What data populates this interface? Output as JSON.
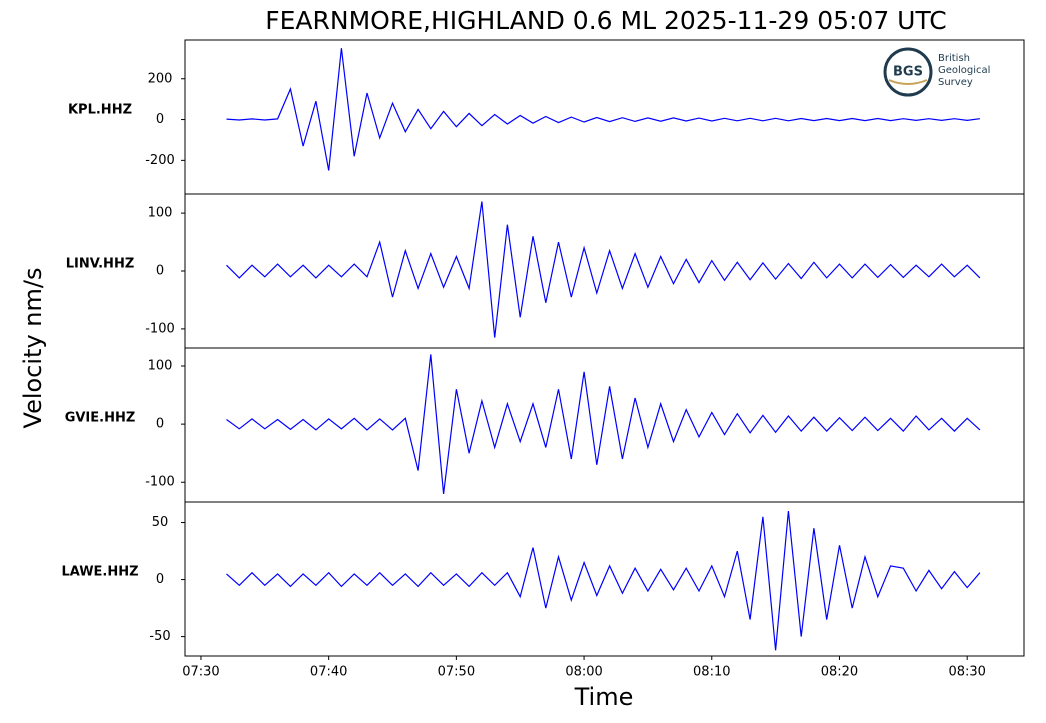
{
  "title": "FEARNMORE,HIGHLAND 0.6 ML   2025-11-29 05:07 UTC",
  "y_label": "Velocity nm/s",
  "x_label": "Time",
  "logo": {
    "acronym": "BGS",
    "lines": [
      "British",
      "Geological",
      "Survey"
    ]
  },
  "chart_data": [
    {
      "type": "line",
      "y_label": "KPL.HHZ",
      "color": "#0000ff",
      "x": [
        452,
        453,
        454,
        455,
        456,
        457,
        458,
        459,
        460,
        461,
        462,
        463,
        464,
        465,
        466,
        467,
        468,
        469,
        470,
        471,
        472,
        473,
        474,
        475,
        476,
        477,
        478,
        479,
        480,
        481,
        482,
        483,
        484,
        485,
        486,
        487,
        488,
        489,
        490,
        491,
        492,
        493,
        494,
        495,
        496,
        497,
        498,
        499,
        500,
        501,
        502,
        503,
        504,
        505,
        506,
        507,
        508,
        509,
        510,
        511
      ],
      "values": [
        2,
        -2,
        3,
        -2,
        3,
        150,
        -130,
        90,
        -250,
        350,
        -180,
        130,
        -90,
        80,
        -60,
        50,
        -45,
        40,
        -35,
        30,
        -30,
        25,
        -22,
        20,
        -18,
        15,
        -15,
        12,
        -12,
        10,
        -10,
        9,
        -9,
        8,
        -8,
        8,
        -7,
        7,
        -7,
        6,
        -6,
        6,
        -6,
        6,
        -6,
        5,
        -5,
        5,
        -5,
        5,
        -5,
        5,
        -5,
        4,
        -4,
        4,
        -4,
        4,
        -4,
        4
      ],
      "xlim": [
        448.75,
        514.45
      ],
      "ylim": [
        -365,
        390
      ],
      "yticks": [
        -200,
        0,
        200
      ]
    },
    {
      "type": "line",
      "y_label": "LINV.HHZ",
      "color": "#0000ff",
      "x": [
        452,
        453,
        454,
        455,
        456,
        457,
        458,
        459,
        460,
        461,
        462,
        463,
        464,
        465,
        466,
        467,
        468,
        469,
        470,
        471,
        472,
        473,
        474,
        475,
        476,
        477,
        478,
        479,
        480,
        481,
        482,
        483,
        484,
        485,
        486,
        487,
        488,
        489,
        490,
        491,
        492,
        493,
        494,
        495,
        496,
        497,
        498,
        499,
        500,
        501,
        502,
        503,
        504,
        505,
        506,
        507,
        508,
        509,
        510,
        511
      ],
      "values": [
        10,
        -12,
        10,
        -10,
        12,
        -10,
        10,
        -12,
        10,
        -10,
        12,
        -10,
        50,
        -45,
        35,
        -30,
        30,
        -28,
        25,
        -30,
        120,
        -115,
        80,
        -80,
        60,
        -55,
        50,
        -45,
        40,
        -38,
        35,
        -30,
        30,
        -28,
        25,
        -22,
        20,
        -20,
        18,
        -16,
        15,
        -15,
        14,
        -14,
        13,
        -13,
        15,
        -12,
        12,
        -12,
        12,
        -11,
        11,
        -11,
        10,
        -10,
        12,
        -10,
        10,
        -12
      ],
      "xlim": [
        448.75,
        514.45
      ],
      "ylim": [
        -133,
        133
      ],
      "yticks": [
        -100,
        0,
        100
      ]
    },
    {
      "type": "line",
      "y_label": "GVIE.HHZ",
      "color": "#0000ff",
      "x": [
        452,
        453,
        454,
        455,
        456,
        457,
        458,
        459,
        460,
        461,
        462,
        463,
        464,
        465,
        466,
        467,
        468,
        469,
        470,
        471,
        472,
        473,
        474,
        475,
        476,
        477,
        478,
        479,
        480,
        481,
        482,
        483,
        484,
        485,
        486,
        487,
        488,
        489,
        490,
        491,
        492,
        493,
        494,
        495,
        496,
        497,
        498,
        499,
        500,
        501,
        502,
        503,
        504,
        505,
        506,
        507,
        508,
        509,
        510,
        511
      ],
      "values": [
        8,
        -8,
        9,
        -8,
        8,
        -9,
        8,
        -10,
        9,
        -8,
        10,
        -10,
        9,
        -10,
        10,
        -80,
        120,
        -120,
        60,
        -50,
        40,
        -40,
        35,
        -30,
        35,
        -40,
        60,
        -60,
        90,
        -70,
        65,
        -60,
        45,
        -40,
        35,
        -30,
        25,
        -22,
        20,
        -18,
        18,
        -15,
        15,
        -14,
        14,
        -12,
        12,
        -12,
        11,
        -11,
        12,
        -11,
        10,
        -12,
        14,
        -10,
        10,
        -12,
        10,
        -10
      ],
      "xlim": [
        448.75,
        514.45
      ],
      "ylim": [
        -134,
        131
      ],
      "yticks": [
        -100,
        0,
        100
      ]
    },
    {
      "type": "line",
      "y_label": "LAWE.HHZ",
      "color": "#0000ff",
      "x": [
        452,
        453,
        454,
        455,
        456,
        457,
        458,
        459,
        460,
        461,
        462,
        463,
        464,
        465,
        466,
        467,
        468,
        469,
        470,
        471,
        472,
        473,
        474,
        475,
        476,
        477,
        478,
        479,
        480,
        481,
        482,
        483,
        484,
        485,
        486,
        487,
        488,
        489,
        490,
        491,
        492,
        493,
        494,
        495,
        496,
        497,
        498,
        499,
        500,
        501,
        502,
        503,
        504,
        505,
        506,
        507,
        508,
        509,
        510,
        511
      ],
      "values": [
        5,
        -5,
        6,
        -5,
        5,
        -6,
        5,
        -5,
        6,
        -6,
        5,
        -5,
        6,
        -5,
        5,
        -6,
        6,
        -5,
        5,
        -6,
        6,
        -5,
        6,
        -15,
        28,
        -25,
        20,
        -18,
        15,
        -14,
        12,
        -12,
        10,
        -10,
        9,
        -9,
        10,
        -10,
        12,
        -15,
        25,
        -35,
        55,
        -62,
        60,
        -50,
        45,
        -35,
        30,
        -25,
        20,
        -15,
        12,
        10,
        -10,
        8,
        -8,
        7,
        -7,
        6
      ],
      "xlim": [
        448.75,
        514.45
      ],
      "ylim": [
        -67,
        68
      ],
      "yticks": [
        -50,
        0,
        50
      ],
      "xticks": [
        {
          "value": 450,
          "label": "07:30"
        },
        {
          "value": 460,
          "label": "07:40"
        },
        {
          "value": 470,
          "label": "07:50"
        },
        {
          "value": 480,
          "label": "08:00"
        },
        {
          "value": 490,
          "label": "08:10"
        },
        {
          "value": 500,
          "label": "08:20"
        },
        {
          "value": 510,
          "label": "08:30"
        }
      ]
    }
  ]
}
